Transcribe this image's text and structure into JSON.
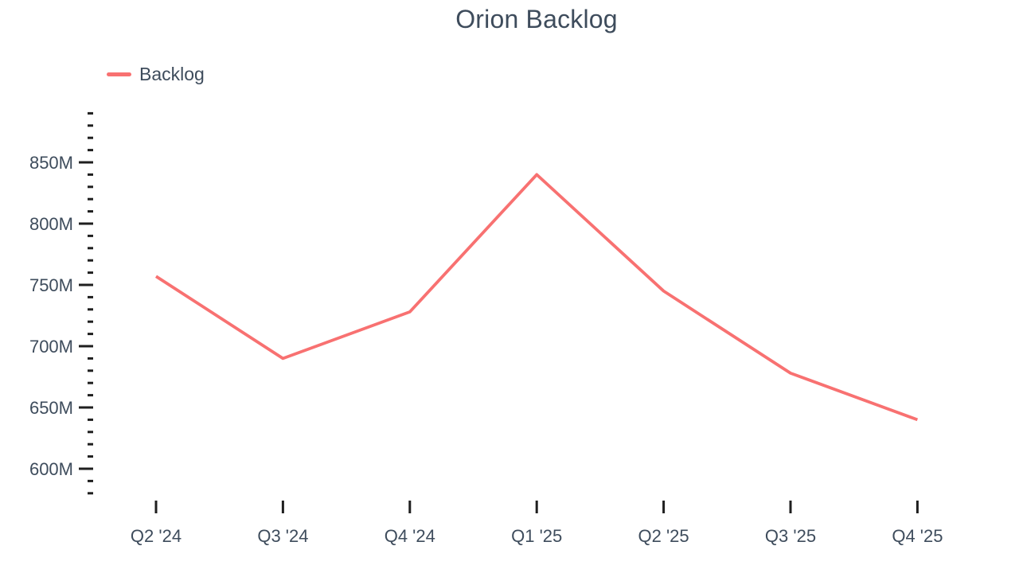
{
  "page": {
    "background_color": "#ffffff"
  },
  "header": {
    "title": "Orion Backlog"
  },
  "legend": {
    "items": [
      {
        "label": "Backlog",
        "color": "#f87171"
      }
    ]
  },
  "chart_data": {
    "type": "line",
    "title": "Orion Backlog",
    "categories": [
      "Q2 '24",
      "Q3 '24",
      "Q4 '24",
      "Q1 '25",
      "Q2 '25",
      "Q3 '25",
      "Q4 '25"
    ],
    "series": [
      {
        "name": "Backlog",
        "color": "#f87171",
        "values": [
          757,
          690,
          728,
          840,
          745,
          678,
          640
        ]
      }
    ],
    "unit": "M",
    "xlabel": "",
    "ylabel": "",
    "ylim": [
      580,
      890
    ],
    "y_minor_step": 10,
    "y_major_step": 50,
    "y_major_ticks": [
      600,
      650,
      700,
      750,
      800,
      850
    ],
    "y_tick_labels": [
      "600M",
      "650M",
      "700M",
      "750M",
      "800M",
      "850M"
    ],
    "grid": false,
    "legend_position": "top-left",
    "axis_text_color": "#3e4c5c",
    "tick_color": "#1f1f1f",
    "background": "#ffffff"
  }
}
